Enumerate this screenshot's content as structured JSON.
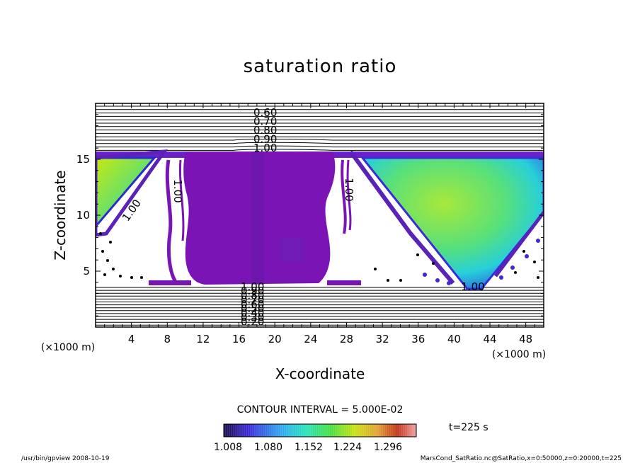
{
  "chart_data": {
    "type": "heatmap",
    "title": "saturation ratio",
    "xlabel": "X-coordinate",
    "ylabel": "Z-coordinate",
    "x_unit": "(×1000 m)",
    "z_unit": "(×1000 m)",
    "xlim": [
      0,
      50
    ],
    "ylim": [
      0,
      20
    ],
    "x_ticks": [
      4,
      8,
      12,
      16,
      20,
      24,
      28,
      32,
      36,
      40,
      44,
      48
    ],
    "y_ticks": [
      5,
      10,
      15
    ],
    "contour_interval": "CONTOUR INTERVAL = 5.000E-02",
    "contour_labels_top": [
      "0.60",
      "0.70",
      "0.80",
      "0.90",
      "1.00"
    ],
    "contour_labels_bottom": [
      "1.00",
      "0.90",
      "0.80",
      "0.70",
      "0.60",
      "0.50",
      "0.40",
      "0.30",
      "0.20"
    ],
    "contour_labels_inline": [
      "1.00",
      "1.00",
      "1.00",
      "1.00"
    ],
    "colorbar": {
      "ticks": [
        "1.008",
        "1.080",
        "1.152",
        "1.224",
        "1.296"
      ],
      "colors": [
        "#1a0a4a",
        "#3a2ad8",
        "#2aa8f0",
        "#28e0c0",
        "#40e040",
        "#c8e010",
        "#e0a030",
        "#c03018",
        "#f0a0a0"
      ]
    },
    "time_label": "t=225 s",
    "plot_colors": {
      "core": "#7a14b4",
      "high": "#a8e03a",
      "edge": "#2a6ad8"
    }
  },
  "footer": {
    "left": "/usr/bin/gpview   2008-10-19",
    "right": "MarsCond_SatRatio.nc@SatRatio,x=0:50000,z=0:20000,t=225"
  }
}
